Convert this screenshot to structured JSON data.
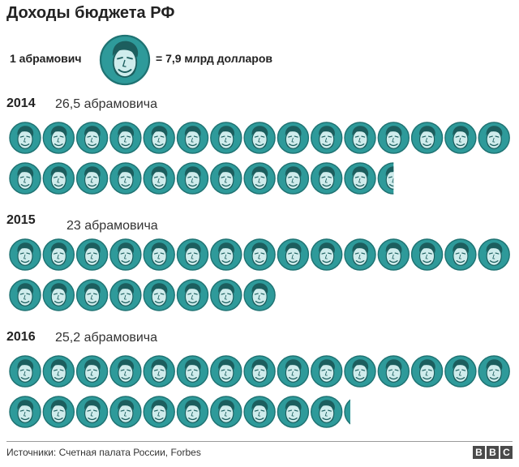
{
  "title": "Доходы бюджета РФ",
  "legend": {
    "left_text": "1 абрамович",
    "right_text": "= 7,9 млрд долларов",
    "coin_icon": "portrait-coin-icon"
  },
  "colors": {
    "coin_fill": "#2e9a9a",
    "coin_ring": "#1f7373",
    "face": "#cfecec",
    "hair": "#1c5e5e"
  },
  "chart_data": {
    "type": "bar",
    "categories": [
      "2014",
      "2015",
      "2016"
    ],
    "series": [
      {
        "values": [
          26.5,
          23,
          25.2
        ]
      }
    ],
    "labels": [
      "26,5 абрамовича",
      "23 абрамовича",
      "25,2 абрамовича"
    ],
    "unit_value": 7.9
  },
  "footer": {
    "source": "Источники: Счетная палата России, Forbes",
    "logo_letters": [
      "B",
      "B",
      "C"
    ]
  }
}
